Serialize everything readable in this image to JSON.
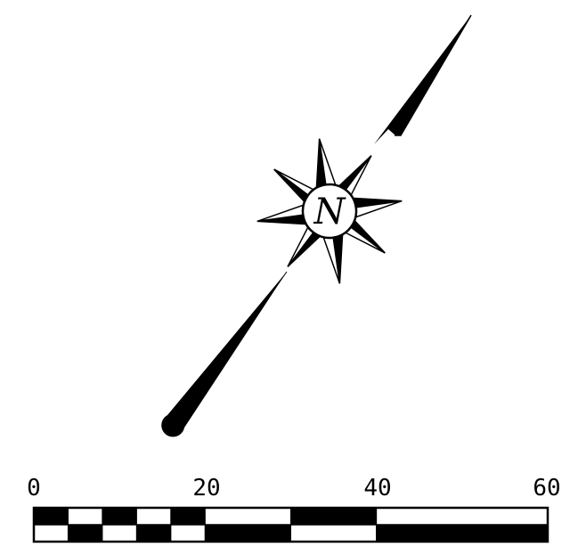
{
  "compass": {
    "north_letter": "N"
  },
  "scale_bar": {
    "tick_labels": [
      "0",
      "20",
      "40",
      "60"
    ],
    "fine_divisions": [
      0,
      4,
      8,
      12,
      16,
      20
    ],
    "coarse_divisions": [
      20,
      30,
      40,
      60
    ],
    "max": 60
  },
  "colors": {
    "ink": "#000000",
    "paper": "#ffffff"
  }
}
